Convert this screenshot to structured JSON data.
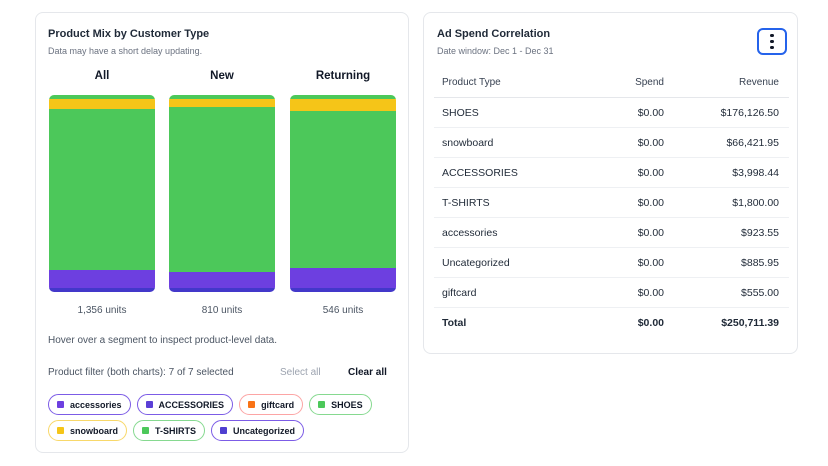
{
  "mix": {
    "title": "Product Mix by Customer Type",
    "subtitle": "Data may have a short delay updating.",
    "columns": [
      {
        "label": "All",
        "units": "1,356 units",
        "shares": [
          0.02,
          0.05,
          0.82,
          0.09,
          0.02
        ]
      },
      {
        "label": "New",
        "units": "810 units",
        "shares": [
          0.02,
          0.04,
          0.84,
          0.08,
          0.02
        ]
      },
      {
        "label": "Returning",
        "units": "546 units",
        "shares": [
          0.02,
          0.06,
          0.8,
          0.1,
          0.02
        ]
      }
    ],
    "segment_colors": [
      "#4cc85a",
      "#f5c518",
      "#4cc85a",
      "#6d3fe0",
      "#4338ca"
    ],
    "hint": "Hover over a segment to inspect product-level data.",
    "filter_label": "Product filter (both charts): 7 of 7 selected",
    "select_all": "Select all",
    "clear_all": "Clear all",
    "chips": [
      {
        "label": "accessories",
        "color": "#6d3fe0",
        "border": "#7c5ce6"
      },
      {
        "label": "ACCESSORIES",
        "color": "#5b3fd6",
        "border": "#7c5ce6"
      },
      {
        "label": "giftcard",
        "color": "#f97316",
        "border": "#fca5a5"
      },
      {
        "label": "SHOES",
        "color": "#4cc85a",
        "border": "#86d990"
      },
      {
        "label": "snowboard",
        "color": "#f5c518",
        "border": "#f8d86a"
      },
      {
        "label": "T-SHIRTS",
        "color": "#4cc85a",
        "border": "#86d990"
      },
      {
        "label": "Uncategorized",
        "color": "#4f3fd0",
        "border": "#7c5ce6"
      }
    ]
  },
  "ad": {
    "title": "Ad Spend Correlation",
    "subtitle": "Date window: Dec 1 - Dec 31",
    "headers": [
      "Product Type",
      "Spend",
      "Revenue"
    ],
    "rows": [
      [
        "SHOES",
        "$0.00",
        "$176,126.50"
      ],
      [
        "snowboard",
        "$0.00",
        "$66,421.95"
      ],
      [
        "ACCESSORIES",
        "$0.00",
        "$3,998.44"
      ],
      [
        "T-SHIRTS",
        "$0.00",
        "$1,800.00"
      ],
      [
        "accessories",
        "$0.00",
        "$923.55"
      ],
      [
        "Uncategorized",
        "$0.00",
        "$885.95"
      ],
      [
        "giftcard",
        "$0.00",
        "$555.00"
      ]
    ],
    "total": [
      "Total",
      "$0.00",
      "$250,711.39"
    ]
  }
}
